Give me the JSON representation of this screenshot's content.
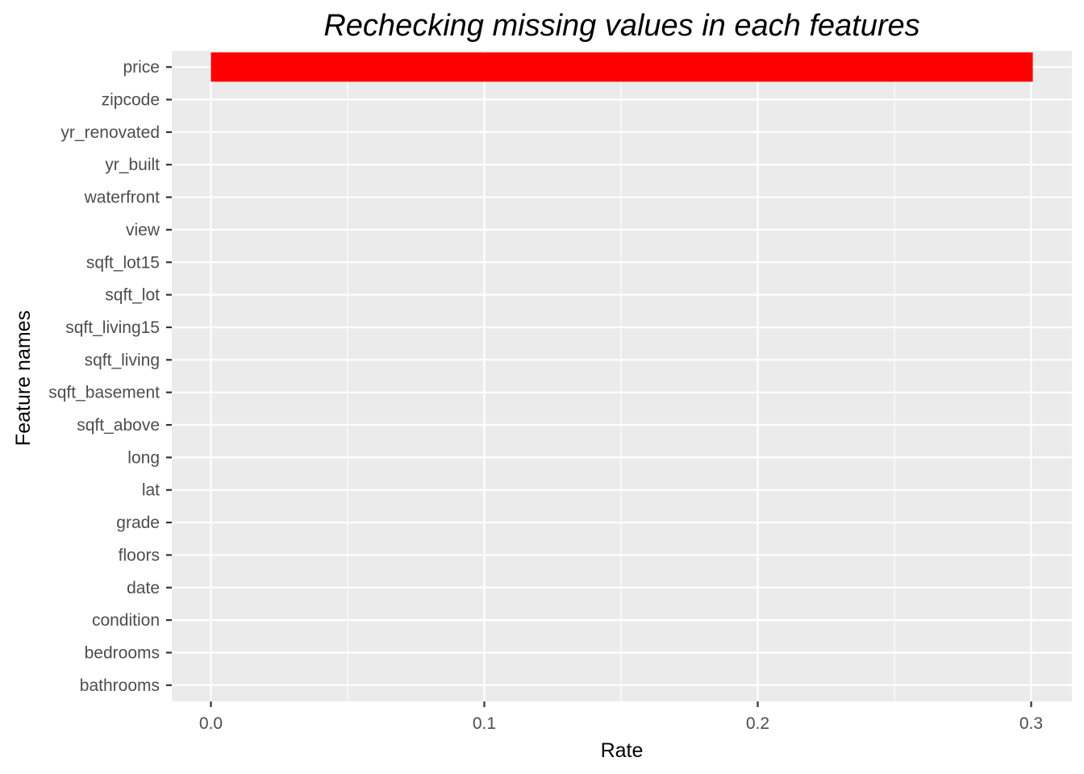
{
  "chart_data": {
    "type": "bar",
    "orientation": "horizontal",
    "title": "Rechecking missing values in each features",
    "xlabel": "Rate",
    "ylabel": "Feature names",
    "categories": [
      "price",
      "zipcode",
      "yr_renovated",
      "yr_built",
      "waterfront",
      "view",
      "sqft_lot15",
      "sqft_lot",
      "sqft_living15",
      "sqft_living",
      "sqft_basement",
      "sqft_above",
      "long",
      "lat",
      "grade",
      "floors",
      "date",
      "condition",
      "bedrooms",
      "bathrooms"
    ],
    "values": [
      0.3006,
      0,
      0,
      0,
      0,
      0,
      0,
      0,
      0,
      0,
      0,
      0,
      0,
      0,
      0,
      0,
      0,
      0,
      0,
      0
    ],
    "xlim": [
      -0.0143,
      0.3149
    ],
    "xticks": [
      0.0,
      0.1,
      0.2,
      0.3
    ],
    "xtick_labels": [
      "0.0",
      "0.1",
      "0.2",
      "0.3"
    ],
    "grid": true,
    "bar_color": "#FF0000",
    "panel_background": "#EBEBEB",
    "grid_color": "#FFFFFF"
  }
}
